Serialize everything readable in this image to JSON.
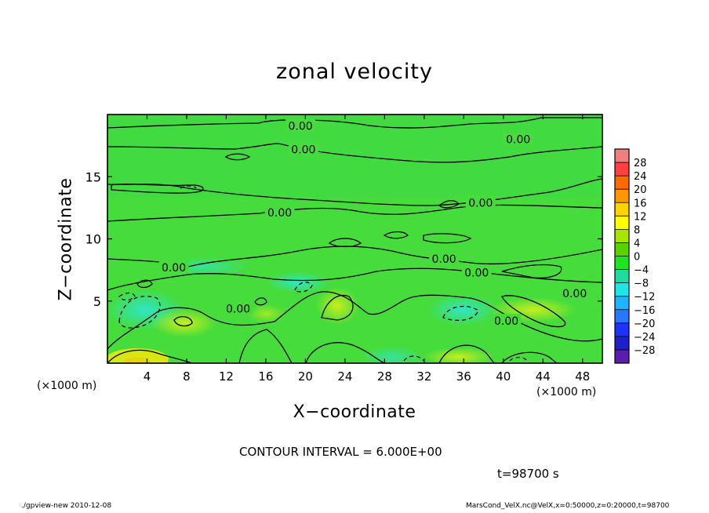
{
  "chart_data": {
    "type": "heatmap",
    "title": "zonal velocity",
    "xlabel": "X−coordinate",
    "ylabel": "Z−coordinate",
    "x_unit_label": "(×1000 m)",
    "y_unit_label": "(×1000 m)",
    "xlim": [
      0,
      50
    ],
    "ylim": [
      0,
      20
    ],
    "x_ticks": [
      "4",
      "8",
      "12",
      "16",
      "20",
      "24",
      "28",
      "32",
      "36",
      "40",
      "44",
      "48"
    ],
    "x_tick_values": [
      4,
      8,
      12,
      16,
      20,
      24,
      28,
      32,
      36,
      40,
      44,
      48
    ],
    "y_ticks": [
      "5",
      "10",
      "15"
    ],
    "y_tick_values": [
      5,
      10,
      15
    ],
    "colorbar": {
      "labels": [
        "28",
        "24",
        "20",
        "16",
        "12",
        "8",
        "4",
        "0",
        "−4",
        "−8",
        "−12",
        "−16",
        "−20",
        "−24",
        "−28"
      ],
      "colors": [
        "#f08080",
        "#ff4040",
        "#ff6a00",
        "#ff9600",
        "#ffd200",
        "#ffff00",
        "#a8e600",
        "#5ad200",
        "#1ee61e",
        "#1edca0",
        "#1ee6e6",
        "#1eb4ff",
        "#2878ff",
        "#1e32ff",
        "#2020c8",
        "#5a1eaa"
      ]
    },
    "contour_labels": [
      {
        "text": "0.00",
        "x": 19.5,
        "y": 19.1
      },
      {
        "text": "0.00",
        "x": 19.8,
        "y": 17.2
      },
      {
        "text": "0.00",
        "x": 41.5,
        "y": 18.0
      },
      {
        "text": "0.00",
        "x": 17.4,
        "y": 12.1
      },
      {
        "text": "0.00",
        "x": 37.7,
        "y": 12.9
      },
      {
        "text": "0.00",
        "x": 6.7,
        "y": 7.7
      },
      {
        "text": "0.00",
        "x": 34.0,
        "y": 8.4
      },
      {
        "text": "0.00",
        "x": 37.3,
        "y": 7.3
      },
      {
        "text": "0.00",
        "x": 47.2,
        "y": 5.6
      },
      {
        "text": "0.00",
        "x": 13.2,
        "y": 4.4
      },
      {
        "text": "0.00",
        "x": 40.3,
        "y": 3.4
      }
    ],
    "contour_interval": 6.0
  },
  "labels": {
    "title": "zonal velocity",
    "xlabel": "X−coordinate",
    "ylabel": "Z−coordinate",
    "xunit_left": "(×1000 m)",
    "xunit_right": "(×1000 m)",
    "contour_note": "CONTOUR INTERVAL = 6.000E+00",
    "time_note": "t=98700 s",
    "footer_left": "./gpview-new   2010-12-08",
    "footer_right": "MarsCond_VelX.nc@VelX,x=0:50000,z=0:20000,t=98700"
  }
}
